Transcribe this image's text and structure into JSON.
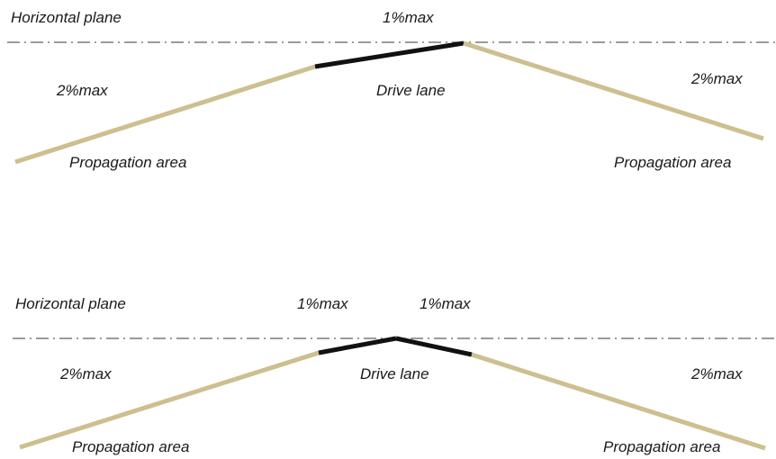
{
  "colors": {
    "propagation": "#cdbf8f",
    "drive_lane": "#111111",
    "horizontal_plane": "#7a7a70"
  },
  "top_diagram": {
    "horizontal_plane": "Horizontal plane",
    "drive_slope": "1%max",
    "left_slope": "2%max",
    "right_slope": "2%max",
    "drive_lane": "Drive lane",
    "left_area": "Propagation area",
    "right_area": "Propagation area"
  },
  "bottom_diagram": {
    "horizontal_plane": "Horizontal plane",
    "drive_slope_left": "1%max",
    "drive_slope_right": "1%max",
    "left_slope": "2%max",
    "right_slope": "2%max",
    "drive_lane": "Drive lane",
    "left_area": "Propagation area",
    "right_area": "Propagation area"
  }
}
